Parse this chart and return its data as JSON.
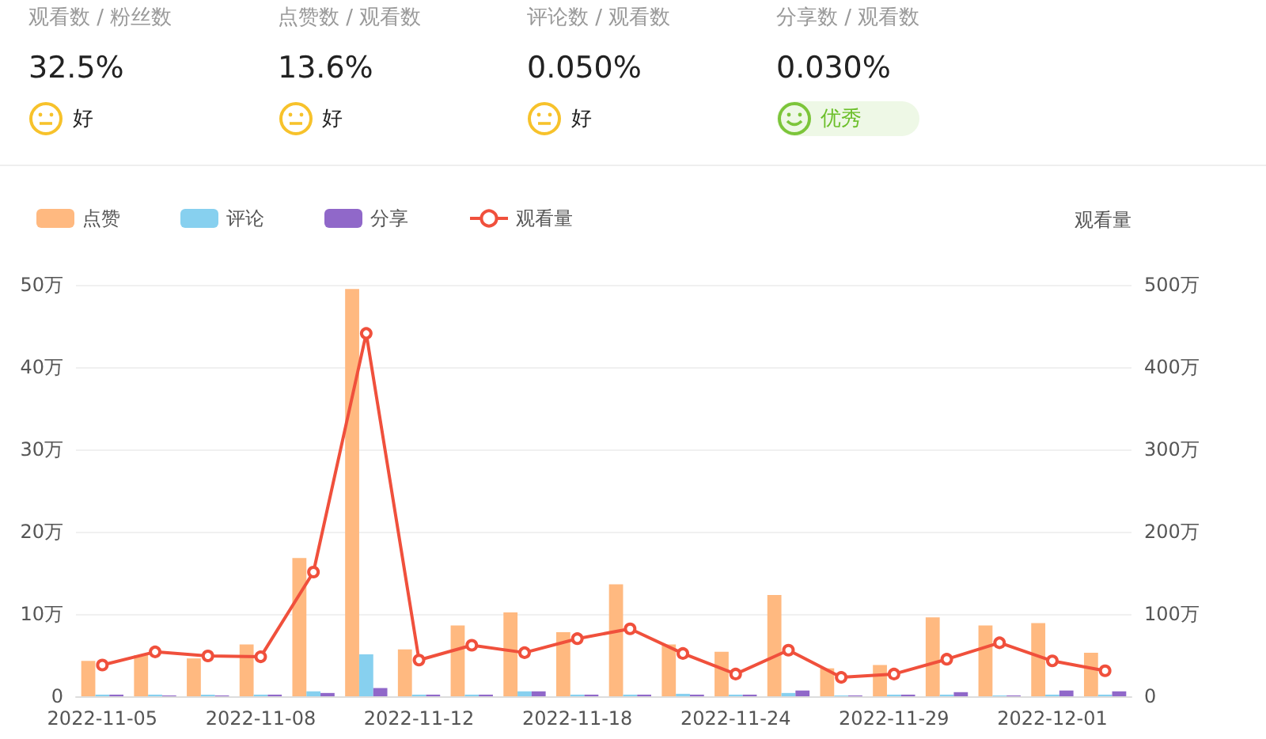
{
  "chart_data": [
    {
      "type": "other",
      "annotations": [
        "观看数 / 粉丝数",
        "32.5%",
        "好",
        "点赞数 / 观看数",
        "13.6%",
        "好",
        "评论数 / 观看数",
        "0.050%",
        "好",
        "分享数 / 观看数",
        "0.030%",
        "优秀"
      ]
    },
    {
      "type": "bar",
      "y2label": "观看量",
      "categories": [
        "2022-11-05",
        null,
        null,
        "2022-11-08",
        null,
        null,
        "2022-11-12",
        null,
        null,
        "2022-11-18",
        null,
        null,
        "2022-11-24",
        null,
        null,
        "2022-11-29",
        null,
        null,
        "2022-12-01",
        null
      ],
      "series": [
        {
          "name": "点赞",
          "color": "#ffb980",
          "values": [
            4.3,
            5.0,
            4.6,
            6.3,
            16.8,
            49.5,
            5.7,
            8.6,
            10.2,
            7.8,
            13.6,
            6.3,
            5.4,
            12.3,
            3.4,
            3.8,
            9.6,
            8.6,
            8.9,
            5.3
          ]
        },
        {
          "name": "评论",
          "color": "#87d0ef",
          "values": [
            0.2,
            0.2,
            0.2,
            0.2,
            0.6,
            5.1,
            0.2,
            0.2,
            0.6,
            0.2,
            0.2,
            0.3,
            0.2,
            0.4,
            0.1,
            0.2,
            0.2,
            0.1,
            0.2,
            0.2
          ]
        },
        {
          "name": "分享",
          "color": "#9068c9",
          "values": [
            0.2,
            0.1,
            0.1,
            0.2,
            0.4,
            1.0,
            0.2,
            0.2,
            0.6,
            0.2,
            0.2,
            0.2,
            0.2,
            0.7,
            0.1,
            0.2,
            0.5,
            0.1,
            0.7,
            0.6
          ]
        },
        {
          "name": "观看量",
          "type": "line",
          "axis": "y2",
          "color": "#f0503c",
          "marker": "circle",
          "values": [
            38,
            54,
            49,
            48,
            151,
            441,
            44,
            62,
            53,
            70,
            82,
            52,
            27,
            56,
            23,
            27,
            45,
            65,
            43,
            31
          ]
        }
      ],
      "ylim": [
        0,
        50
      ],
      "yticks": [
        {
          "value": 0,
          "label": "0"
        },
        {
          "value": 10,
          "label": "10万"
        },
        {
          "value": 20,
          "label": "20万"
        },
        {
          "value": 30,
          "label": "30万"
        },
        {
          "value": 40,
          "label": "40万"
        },
        {
          "value": 50,
          "label": "50万"
        }
      ],
      "y2lim": [
        0,
        500
      ],
      "y2ticks": [
        {
          "value": 0,
          "label": "0"
        },
        {
          "value": 100,
          "label": "100万"
        },
        {
          "value": 200,
          "label": "200万"
        },
        {
          "value": 300,
          "label": "300万"
        },
        {
          "value": 400,
          "label": "400万"
        },
        {
          "value": 500,
          "label": "500万"
        }
      ],
      "grid": "y",
      "legend": "top left"
    }
  ]
}
